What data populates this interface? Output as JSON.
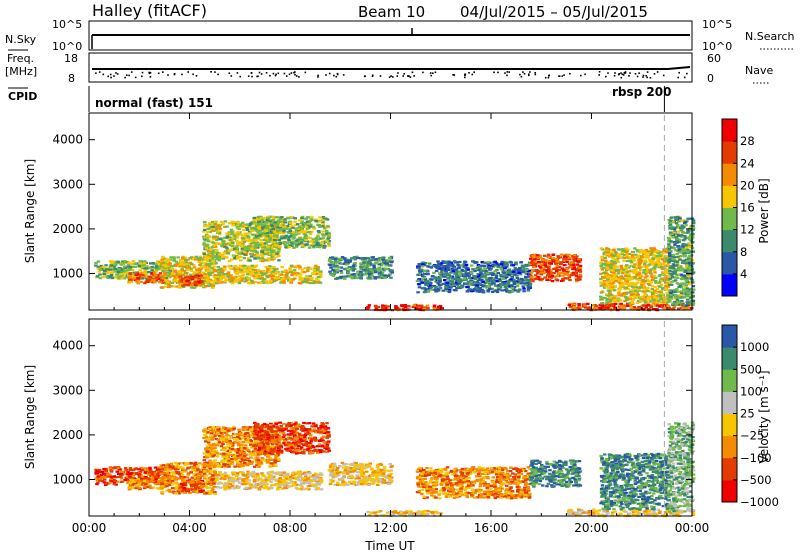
{
  "header": {
    "station": "Halley (fitACF)",
    "beam": "Beam 10",
    "date_range": "04/Jul/2015 – 05/Jul/2015"
  },
  "top_panels": {
    "nsky_label": "N.Sky",
    "nsky_ticks": [
      "10^5",
      "10^0"
    ],
    "nsearch_label": "N.Search",
    "nsearch_ticks": [
      "10^5",
      "10^0"
    ],
    "freq_label": "Freq.",
    "freq_unit": "[MHz]",
    "freq_ticks": [
      "18",
      "8"
    ],
    "nave_label": "Nave",
    "nave_ticks": [
      "60",
      "0"
    ],
    "cpid_label": "CPID",
    "cpid_modes": [
      "normal (fast) 151",
      "rbsp 200"
    ],
    "cpid_mode_change_hour": 22.9
  },
  "chart_data": [
    {
      "type": "heatmap",
      "name": "power",
      "ylabel": "Slant Range [km]",
      "colorbar_label": "Power [dB]",
      "colorbar_ticks": [
        "28",
        "24",
        "20",
        "16",
        "12",
        "8",
        "4"
      ],
      "colors": [
        "#0000ff",
        "#2a58a8",
        "#3c8a6e",
        "#6fba4a",
        "#f7c600",
        "#f58b00",
        "#e33b00",
        "#f00000"
      ],
      "ylim": [
        180,
        4600
      ],
      "yticks": [
        "4000",
        "3000",
        "2000",
        "1000"
      ],
      "xlim": [
        0,
        24
      ],
      "xticks": [
        "00:00",
        "04:00",
        "08:00",
        "12:00",
        "16:00",
        "20:00",
        "00:00"
      ],
      "xlabel": "Time UT",
      "dashed_marker_hour": 22.9,
      "echo_regions": [
        {
          "t": [
            0.2,
            3.2
          ],
          "r": [
            900,
            1300
          ],
          "value": 14
        },
        {
          "t": [
            1.5,
            3.0
          ],
          "r": [
            800,
            1050
          ],
          "value": 24
        },
        {
          "t": [
            2.8,
            5.0
          ],
          "r": [
            700,
            1400
          ],
          "value": 18
        },
        {
          "t": [
            3.5,
            4.5
          ],
          "r": [
            750,
            1000
          ],
          "value": 26
        },
        {
          "t": [
            4.5,
            7.5
          ],
          "r": [
            1300,
            2200
          ],
          "value": 16
        },
        {
          "t": [
            5.0,
            9.2
          ],
          "r": [
            800,
            1200
          ],
          "value": 18
        },
        {
          "t": [
            6.5,
            9.5
          ],
          "r": [
            1600,
            2300
          ],
          "value": 14
        },
        {
          "t": [
            9.5,
            12.0
          ],
          "r": [
            900,
            1400
          ],
          "value": 10
        },
        {
          "t": [
            11.0,
            14.0
          ],
          "r": [
            200,
            320
          ],
          "value": 28
        },
        {
          "t": [
            13.0,
            17.5
          ],
          "r": [
            600,
            1300
          ],
          "value": 8
        },
        {
          "t": [
            17.5,
            19.5
          ],
          "r": [
            850,
            1450
          ],
          "value": 26
        },
        {
          "t": [
            19.0,
            24.0
          ],
          "r": [
            200,
            350
          ],
          "value": 26
        },
        {
          "t": [
            20.3,
            23.0
          ],
          "r": [
            350,
            1600
          ],
          "value": 18
        },
        {
          "t": [
            23.0,
            24.0
          ],
          "r": [
            300,
            2300
          ],
          "value": 12
        }
      ]
    },
    {
      "type": "heatmap",
      "name": "velocity",
      "ylabel": "Slant Range [km]",
      "colorbar_label": "Velocity [m s⁻¹]",
      "colorbar_ticks": [
        "1000",
        "500",
        "100",
        "25",
        "−25",
        "−100",
        "−500",
        "−1000"
      ],
      "colors": [
        "#f00000",
        "#e33b00",
        "#f58b00",
        "#f7c600",
        "#c0c0c0",
        "#6fba4a",
        "#3c8a6e",
        "#2a58a8"
      ],
      "ylim": [
        180,
        4600
      ],
      "yticks": [
        "4000",
        "3000",
        "2000",
        "1000"
      ],
      "xlim": [
        0,
        24
      ],
      "xticks": [
        "00:00",
        "04:00",
        "08:00",
        "12:00",
        "16:00",
        "20:00",
        "00:00"
      ],
      "xlabel": "Time UT",
      "dashed_marker_hour": 22.9,
      "echo_regions": [
        {
          "t": [
            0.2,
            3.2
          ],
          "r": [
            900,
            1300
          ],
          "value": 1
        },
        {
          "t": [
            1.5,
            3.0
          ],
          "r": [
            800,
            1050
          ],
          "value": 2
        },
        {
          "t": [
            2.8,
            5.0
          ],
          "r": [
            700,
            1400
          ],
          "value": 2
        },
        {
          "t": [
            3.5,
            4.5
          ],
          "r": [
            750,
            1000
          ],
          "value": 1
        },
        {
          "t": [
            4.5,
            7.5
          ],
          "r": [
            1300,
            2200
          ],
          "value": 2
        },
        {
          "t": [
            5.0,
            9.2
          ],
          "r": [
            800,
            1200
          ],
          "value": 3
        },
        {
          "t": [
            6.5,
            9.5
          ],
          "r": [
            1600,
            2300
          ],
          "value": 1
        },
        {
          "t": [
            9.5,
            12.0
          ],
          "r": [
            900,
            1400
          ],
          "value": 3
        },
        {
          "t": [
            11.0,
            14.0
          ],
          "r": [
            200,
            320
          ],
          "value": 3
        },
        {
          "t": [
            13.0,
            17.5
          ],
          "r": [
            600,
            1300
          ],
          "value": 2
        },
        {
          "t": [
            17.5,
            19.5
          ],
          "r": [
            850,
            1450
          ],
          "value": 6
        },
        {
          "t": [
            19.0,
            24.0
          ],
          "r": [
            200,
            350
          ],
          "value": 3
        },
        {
          "t": [
            20.3,
            23.0
          ],
          "r": [
            350,
            1600
          ],
          "value": 6
        },
        {
          "t": [
            23.0,
            24.0
          ],
          "r": [
            300,
            2300
          ],
          "value": 5
        }
      ]
    }
  ]
}
